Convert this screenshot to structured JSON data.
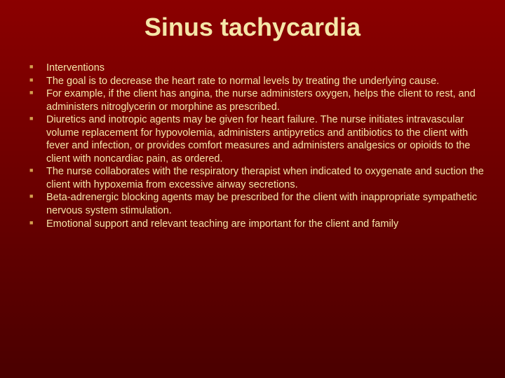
{
  "slide": {
    "title": "Sinus tachycardia",
    "title_color": "#f5e6a8",
    "title_fontsize": 36,
    "background_gradient": [
      "#8b0000",
      "#6b0000",
      "#4a0000"
    ],
    "bullet_marker_color": "#d4a050",
    "body_text_color": "#f5e6a8",
    "body_fontsize": 14.5,
    "bullets": [
      "Interventions",
      "The goal is to decrease the heart rate to normal levels by treating the underlying cause.",
      "For example, if the client has angina, the nurse administers oxygen, helps the client to rest, and administers nitroglycerin or morphine as prescribed.",
      "Diuretics and inotropic agents may be given for heart failure. The nurse initiates intravascular volume replacement for hypovolemia, administers antipyretics and antibiotics to the client with fever and infection, or provides comfort measures and administers analgesics or opioids to the client with noncardiac pain, as ordered.",
      "The nurse collaborates with the respiratory therapist when indicated to oxygenate and suction the client with hypoxemia from excessive airway secretions.",
      "Beta-adrenergic blocking agents may be prescribed for the client with inappropriate sympathetic nervous system stimulation.",
      "Emotional support and relevant teaching are important for the client and family"
    ]
  }
}
